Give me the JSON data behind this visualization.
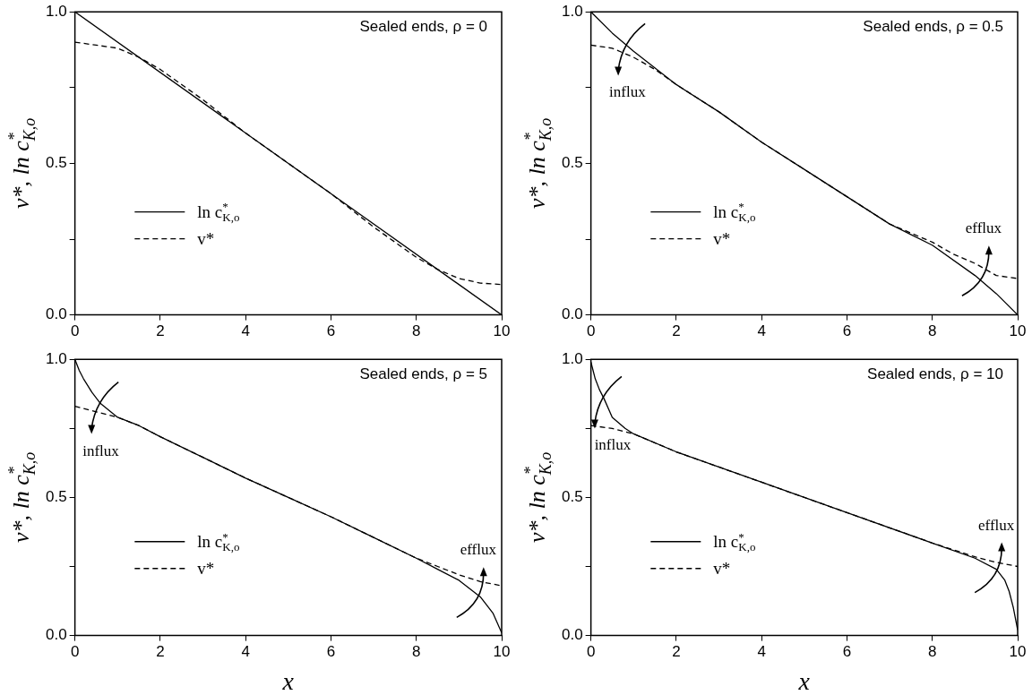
{
  "chart_data": [
    {
      "type": "line",
      "title": "Sealed ends, ρ = 0",
      "ylabel": "v*, ln c$^{*}$$_{K,o}$",
      "xlim": [
        0,
        10
      ],
      "ylim": [
        0,
        1
      ],
      "xticks": [
        0,
        2,
        4,
        6,
        8,
        10
      ],
      "yticks": [
        {
          "value": 0,
          "label": "0.0"
        },
        {
          "value": 0.25,
          "label": null
        },
        {
          "value": 0.5,
          "label": "0.5"
        },
        {
          "value": 0.75,
          "label": null
        },
        {
          "value": 1,
          "label": "1.0"
        }
      ],
      "legend": "bottom left",
      "marker": "none",
      "series": [
        {
          "name": "ln c$^{*}$$_{K,o}$",
          "color": "#000000",
          "line_style": "solid",
          "x": [
            0,
            10
          ],
          "values": [
            1,
            0
          ]
        },
        {
          "name": "v*",
          "color": "#000000",
          "line_style": "dashed",
          "x": [
            0,
            0.5,
            1,
            1.5,
            2,
            3,
            4,
            5,
            6,
            7,
            8,
            8.5,
            9,
            9.5,
            10
          ],
          "values": [
            0.9,
            0.89,
            0.88,
            0.85,
            0.81,
            0.71,
            0.6,
            0.5,
            0.4,
            0.29,
            0.19,
            0.15,
            0.12,
            0.105,
            0.1
          ]
        }
      ]
    },
    {
      "type": "line",
      "title": "Sealed ends, ρ = 0.5",
      "ylabel": "v*, ln c$^{*}$$_{K,o}$",
      "xlim": [
        0,
        10
      ],
      "ylim": [
        0,
        1
      ],
      "xticks": [
        0,
        2,
        4,
        6,
        8,
        10
      ],
      "yticks": [
        {
          "value": 0,
          "label": "0.0"
        },
        {
          "value": 0.25,
          "label": null
        },
        {
          "value": 0.5,
          "label": "0.5"
        },
        {
          "value": 0.75,
          "label": null
        },
        {
          "value": 1,
          "label": "1.0"
        }
      ],
      "legend": "bottom left",
      "marker": "none",
      "series": [
        {
          "name": "ln c$^{*}$$_{K,o}$",
          "color": "#000000",
          "line_style": "solid",
          "x": [
            0,
            0.5,
            1,
            2,
            3,
            4,
            5,
            6,
            7,
            8,
            9,
            9.5,
            10
          ],
          "values": [
            1,
            0.93,
            0.87,
            0.76,
            0.67,
            0.57,
            0.48,
            0.39,
            0.3,
            0.23,
            0.13,
            0.07,
            0
          ]
        },
        {
          "name": "v*",
          "color": "#000000",
          "line_style": "dashed",
          "x": [
            0,
            0.5,
            1,
            1.5,
            2,
            3,
            4,
            5,
            6,
            7,
            8,
            8.5,
            9,
            9.5,
            10
          ],
          "values": [
            0.89,
            0.88,
            0.85,
            0.81,
            0.76,
            0.67,
            0.57,
            0.48,
            0.39,
            0.3,
            0.24,
            0.2,
            0.17,
            0.13,
            0.12
          ]
        }
      ],
      "annotations": [
        {
          "text": "influx",
          "x": 0.85,
          "y": 0.89
        },
        {
          "text": "efflux",
          "x": 9.2,
          "y": 0.14
        }
      ]
    },
    {
      "type": "line",
      "title": "Sealed ends, ρ = 5",
      "xlabel": "x",
      "ylabel": "v*, ln c$^{*}$$_{K,o}$",
      "xlim": [
        0,
        10
      ],
      "ylim": [
        0,
        1
      ],
      "xticks": [
        0,
        2,
        4,
        6,
        8,
        10
      ],
      "yticks": [
        {
          "value": 0,
          "label": "0.0"
        },
        {
          "value": 0.25,
          "label": null
        },
        {
          "value": 0.5,
          "label": "0.5"
        },
        {
          "value": 0.75,
          "label": null
        },
        {
          "value": 1,
          "label": "1.0"
        }
      ],
      "legend": "bottom left",
      "marker": "none",
      "series": [
        {
          "name": "ln c$^{*}$$_{K,o}$",
          "color": "#000000",
          "line_style": "solid",
          "x": [
            0,
            0.1,
            0.2,
            0.4,
            0.6,
            1,
            1.5,
            2,
            3,
            4,
            5,
            6,
            7,
            8,
            8.5,
            9,
            9.5,
            9.8,
            10
          ],
          "values": [
            1,
            0.96,
            0.93,
            0.88,
            0.84,
            0.79,
            0.76,
            0.72,
            0.645,
            0.57,
            0.5,
            0.43,
            0.355,
            0.28,
            0.24,
            0.2,
            0.14,
            0.08,
            0.01
          ]
        },
        {
          "name": "v*",
          "color": "#000000",
          "line_style": "dashed",
          "x": [
            0,
            0.5,
            1,
            1.5,
            2,
            3,
            4,
            5,
            6,
            7,
            8,
            8.5,
            9,
            9.5,
            10
          ],
          "values": [
            0.83,
            0.81,
            0.79,
            0.76,
            0.72,
            0.645,
            0.57,
            0.5,
            0.43,
            0.355,
            0.28,
            0.25,
            0.22,
            0.195,
            0.18
          ]
        }
      ],
      "annotations": [
        {
          "text": "influx",
          "x": 0.6,
          "y": 0.84
        },
        {
          "text": "efflux",
          "x": 9.45,
          "y": 0.15
        }
      ]
    },
    {
      "type": "line",
      "title": "Sealed ends, ρ = 10",
      "xlabel": "x",
      "ylabel": "v*, ln c$^{*}$$_{K,o}$",
      "xlim": [
        0,
        10
      ],
      "ylim": [
        0,
        1
      ],
      "xticks": [
        0,
        2,
        4,
        6,
        8,
        10
      ],
      "yticks": [
        {
          "value": 0,
          "label": "0.0"
        },
        {
          "value": 0.25,
          "label": null
        },
        {
          "value": 0.5,
          "label": "0.5"
        },
        {
          "value": 0.75,
          "label": null
        },
        {
          "value": 1,
          "label": "1.0"
        }
      ],
      "legend": "bottom left",
      "marker": "none",
      "series": [
        {
          "name": "ln c$^{*}$$_{K,o}$",
          "color": "#000000",
          "line_style": "solid",
          "x": [
            0,
            0.1,
            0.2,
            0.3,
            0.5,
            0.8,
            1,
            2,
            4,
            6,
            8,
            9,
            9.5,
            9.7,
            9.8,
            9.9,
            10
          ],
          "values": [
            0.99,
            0.93,
            0.89,
            0.86,
            0.79,
            0.75,
            0.73,
            0.665,
            0.555,
            0.445,
            0.335,
            0.28,
            0.24,
            0.2,
            0.16,
            0.1,
            0.02
          ]
        },
        {
          "name": "v*",
          "color": "#000000",
          "line_style": "dashed",
          "x": [
            0,
            0.5,
            1,
            2,
            4,
            6,
            8,
            9,
            9.5,
            10
          ],
          "values": [
            0.76,
            0.75,
            0.73,
            0.665,
            0.555,
            0.445,
            0.335,
            0.285,
            0.265,
            0.25
          ]
        }
      ],
      "annotations": [
        {
          "text": "influx",
          "x": 0.3,
          "y": 0.86
        },
        {
          "text": "efflux",
          "x": 9.5,
          "y": 0.24
        }
      ]
    }
  ]
}
